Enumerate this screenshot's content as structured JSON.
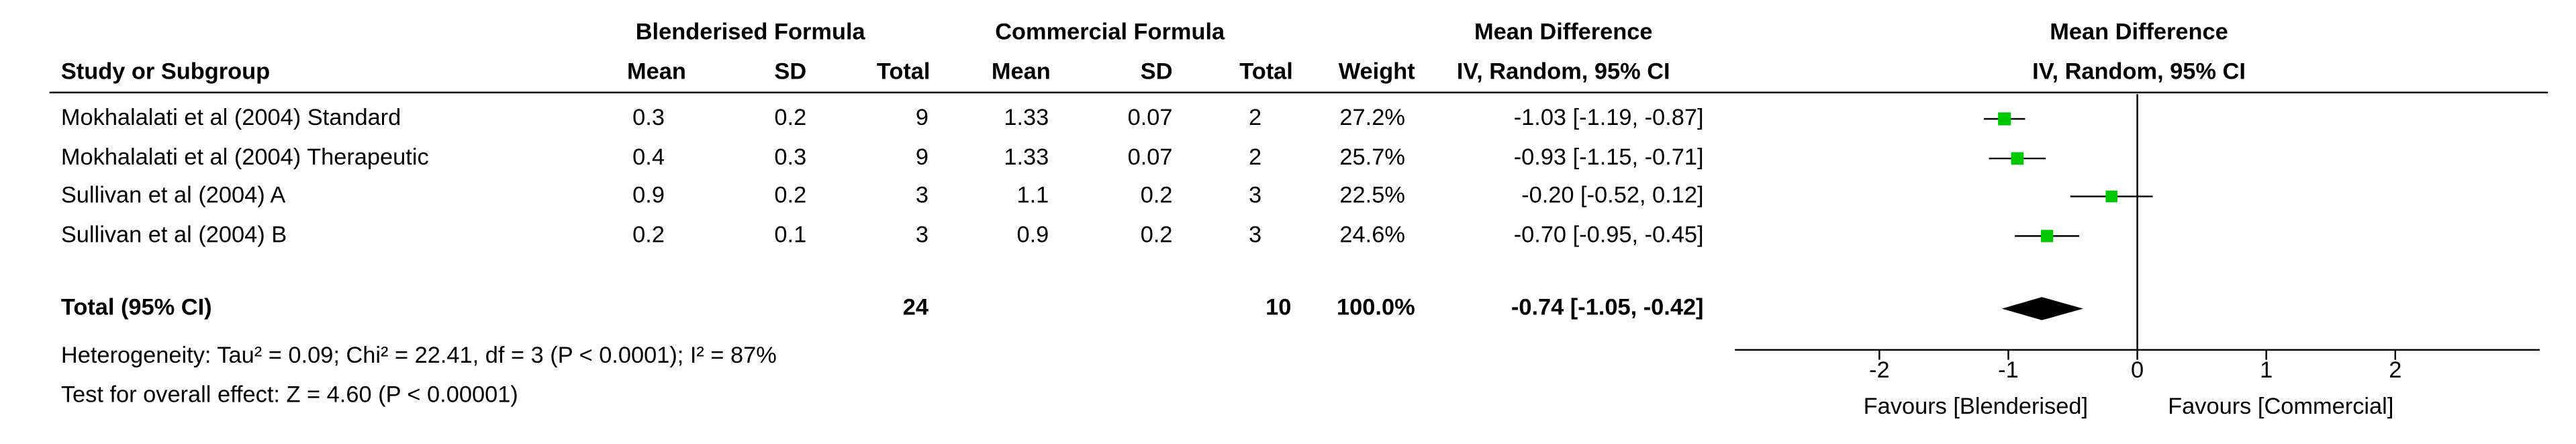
{
  "chart_data": {
    "type": "forest",
    "headers": {
      "group_blend": "Blenderised Formula",
      "group_comm": "Commercial Formula",
      "md_title": "Mean Difference",
      "study": "Study or Subgroup",
      "blend_cols": [
        "Mean",
        "SD",
        "Total"
      ],
      "comm_cols": [
        "Mean",
        "SD",
        "Total"
      ],
      "weight": "Weight",
      "method": "IV, Random, 95% CI",
      "plot_title": "Mean Difference",
      "plot_method": "IV, Random, 95% CI"
    },
    "studies": [
      {
        "name": "Mokhalalati et al (2004) Standard",
        "blend_mean": 0.3,
        "blend_sd": 0.2,
        "blend_total": 9,
        "comm_mean": 1.33,
        "comm_sd": 0.07,
        "comm_total": 2,
        "weight": 27.2,
        "weight_label": "27.2%",
        "md": -1.03,
        "ci": [
          -1.19,
          -0.87
        ],
        "ci_label": "-1.03 [-1.19, -0.87]"
      },
      {
        "name": "Mokhalalati et al (2004) Therapeutic",
        "blend_mean": 0.4,
        "blend_sd": 0.3,
        "blend_total": 9,
        "comm_mean": 1.33,
        "comm_sd": 0.07,
        "comm_total": 2,
        "weight": 25.7,
        "weight_label": "25.7%",
        "md": -0.93,
        "ci": [
          -1.15,
          -0.71
        ],
        "ci_label": "-0.93 [-1.15, -0.71]"
      },
      {
        "name": "Sullivan et al (2004) A",
        "blend_mean": 0.9,
        "blend_sd": 0.2,
        "blend_total": 3,
        "comm_mean": 1.1,
        "comm_sd": 0.2,
        "comm_total": 3,
        "weight": 22.5,
        "weight_label": "22.5%",
        "md": -0.2,
        "ci": [
          -0.52,
          0.12
        ],
        "ci_label": "-0.20 [-0.52, 0.12]"
      },
      {
        "name": "Sullivan et al (2004) B",
        "blend_mean": 0.2,
        "blend_sd": 0.1,
        "blend_total": 3,
        "comm_mean": 0.9,
        "comm_sd": 0.2,
        "comm_total": 3,
        "weight": 24.6,
        "weight_label": "24.6%",
        "md": -0.7,
        "ci": [
          -0.95,
          -0.45
        ],
        "ci_label": "-0.70 [-0.95, -0.45]"
      }
    ],
    "total": {
      "label": "Total (95% CI)",
      "blend_total": 24,
      "comm_total": 10,
      "weight": 100,
      "weight_label": "100.0%",
      "md": -0.74,
      "ci": [
        -1.05,
        -0.42
      ],
      "ci_label": "-0.74 [-1.05, -0.42]"
    },
    "heterogeneity": "Heterogeneity: Tau² = 0.09; Chi² = 22.41, df = 3 (P < 0.0001); I² = 87%",
    "overall_test": "Test for overall effect: Z = 4.60 (P < 0.00001)",
    "xlim": [
      -3.12,
      3.12
    ],
    "xticks": [
      -2,
      -1,
      0,
      1,
      2
    ],
    "left_label": "Favours [Blenderised]",
    "right_label": "Favours [Commercial]",
    "marker_color": "#00c800",
    "summary_color": "#000000"
  }
}
